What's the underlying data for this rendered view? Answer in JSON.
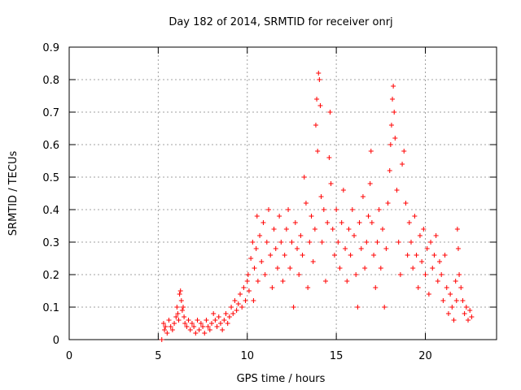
{
  "chart_data": {
    "type": "scatter",
    "title": "Day 182 of 2014, SRMTID for receiver onrj",
    "xlabel": "GPS time / hours",
    "ylabel": "SRMTID / TECUs",
    "xlim": [
      0,
      24
    ],
    "ylim": [
      0,
      0.9
    ],
    "xticks": [
      0,
      5,
      10,
      15,
      20
    ],
    "xtick_labels": [
      "0",
      "5",
      "10",
      "15",
      "20"
    ],
    "yticks": [
      0,
      0.1,
      0.2,
      0.3,
      0.4,
      0.5,
      0.6,
      0.7,
      0.8,
      0.9
    ],
    "ytick_labels": [
      "0",
      "0.1",
      "0.2",
      "0.3",
      "0.4",
      "0.5",
      "0.6",
      "0.7",
      "0.8",
      "0.9"
    ],
    "grid": true,
    "marker": "+",
    "series": [
      {
        "name": "SRMTID",
        "color": "#ff0000",
        "points": [
          [
            5.2,
            0.0
          ],
          [
            5.3,
            0.05
          ],
          [
            5.35,
            0.03
          ],
          [
            5.4,
            0.04
          ],
          [
            5.5,
            0.02
          ],
          [
            5.6,
            0.06
          ],
          [
            5.7,
            0.04
          ],
          [
            5.8,
            0.03
          ],
          [
            5.9,
            0.05
          ],
          [
            6.0,
            0.07
          ],
          [
            6.05,
            0.1
          ],
          [
            6.1,
            0.08
          ],
          [
            6.15,
            0.06
          ],
          [
            6.2,
            0.14
          ],
          [
            6.25,
            0.15
          ],
          [
            6.3,
            0.12
          ],
          [
            6.35,
            0.09
          ],
          [
            6.4,
            0.1
          ],
          [
            6.45,
            0.07
          ],
          [
            6.5,
            0.05
          ],
          [
            6.6,
            0.04
          ],
          [
            6.7,
            0.06
          ],
          [
            6.8,
            0.03
          ],
          [
            6.9,
            0.05
          ],
          [
            7.0,
            0.04
          ],
          [
            7.1,
            0.02
          ],
          [
            7.2,
            0.06
          ],
          [
            7.3,
            0.03
          ],
          [
            7.4,
            0.05
          ],
          [
            7.5,
            0.04
          ],
          [
            7.6,
            0.02
          ],
          [
            7.7,
            0.06
          ],
          [
            7.8,
            0.04
          ],
          [
            7.9,
            0.03
          ],
          [
            8.0,
            0.05
          ],
          [
            8.1,
            0.08
          ],
          [
            8.2,
            0.06
          ],
          [
            8.3,
            0.04
          ],
          [
            8.4,
            0.07
          ],
          [
            8.5,
            0.05
          ],
          [
            8.6,
            0.03
          ],
          [
            8.7,
            0.06
          ],
          [
            8.8,
            0.08
          ],
          [
            8.9,
            0.05
          ],
          [
            9.0,
            0.07
          ],
          [
            9.1,
            0.1
          ],
          [
            9.2,
            0.08
          ],
          [
            9.3,
            0.12
          ],
          [
            9.4,
            0.09
          ],
          [
            9.5,
            0.11
          ],
          [
            9.6,
            0.14
          ],
          [
            9.7,
            0.1
          ],
          [
            9.8,
            0.16
          ],
          [
            9.9,
            0.12
          ],
          [
            10.0,
            0.18
          ],
          [
            10.05,
            0.2
          ],
          [
            10.1,
            0.15
          ],
          [
            10.2,
            0.25
          ],
          [
            10.3,
            0.3
          ],
          [
            10.35,
            0.12
          ],
          [
            10.4,
            0.22
          ],
          [
            10.5,
            0.28
          ],
          [
            10.55,
            0.38
          ],
          [
            10.6,
            0.18
          ],
          [
            10.7,
            0.32
          ],
          [
            10.8,
            0.24
          ],
          [
            10.9,
            0.36
          ],
          [
            11.0,
            0.2
          ],
          [
            11.1,
            0.3
          ],
          [
            11.2,
            0.4
          ],
          [
            11.3,
            0.26
          ],
          [
            11.4,
            0.16
          ],
          [
            11.5,
            0.34
          ],
          [
            11.6,
            0.28
          ],
          [
            11.7,
            0.22
          ],
          [
            11.8,
            0.38
          ],
          [
            11.9,
            0.3
          ],
          [
            12.0,
            0.18
          ],
          [
            12.1,
            0.26
          ],
          [
            12.2,
            0.34
          ],
          [
            12.3,
            0.4
          ],
          [
            12.4,
            0.22
          ],
          [
            12.5,
            0.3
          ],
          [
            12.6,
            0.1
          ],
          [
            12.7,
            0.36
          ],
          [
            12.8,
            0.28
          ],
          [
            12.9,
            0.2
          ],
          [
            13.0,
            0.32
          ],
          [
            13.1,
            0.26
          ],
          [
            13.2,
            0.5
          ],
          [
            13.3,
            0.42
          ],
          [
            13.4,
            0.16
          ],
          [
            13.5,
            0.3
          ],
          [
            13.6,
            0.38
          ],
          [
            13.7,
            0.24
          ],
          [
            13.8,
            0.34
          ],
          [
            13.85,
            0.66
          ],
          [
            13.9,
            0.74
          ],
          [
            13.95,
            0.58
          ],
          [
            14.0,
            0.82
          ],
          [
            14.05,
            0.8
          ],
          [
            14.1,
            0.72
          ],
          [
            14.15,
            0.44
          ],
          [
            14.2,
            0.3
          ],
          [
            14.3,
            0.4
          ],
          [
            14.4,
            0.18
          ],
          [
            14.5,
            0.36
          ],
          [
            14.6,
            0.56
          ],
          [
            14.65,
            0.7
          ],
          [
            14.7,
            0.48
          ],
          [
            14.8,
            0.34
          ],
          [
            14.9,
            0.26
          ],
          [
            15.0,
            0.4
          ],
          [
            15.1,
            0.3
          ],
          [
            15.2,
            0.22
          ],
          [
            15.3,
            0.36
          ],
          [
            15.4,
            0.46
          ],
          [
            15.5,
            0.28
          ],
          [
            15.6,
            0.18
          ],
          [
            15.7,
            0.34
          ],
          [
            15.8,
            0.26
          ],
          [
            15.9,
            0.4
          ],
          [
            16.0,
            0.32
          ],
          [
            16.1,
            0.2
          ],
          [
            16.2,
            0.1
          ],
          [
            16.3,
            0.36
          ],
          [
            16.4,
            0.28
          ],
          [
            16.5,
            0.44
          ],
          [
            16.6,
            0.22
          ],
          [
            16.7,
            0.3
          ],
          [
            16.8,
            0.38
          ],
          [
            16.9,
            0.48
          ],
          [
            16.95,
            0.58
          ],
          [
            17.0,
            0.36
          ],
          [
            17.1,
            0.26
          ],
          [
            17.2,
            0.16
          ],
          [
            17.3,
            0.3
          ],
          [
            17.4,
            0.4
          ],
          [
            17.5,
            0.22
          ],
          [
            17.6,
            0.34
          ],
          [
            17.7,
            0.1
          ],
          [
            17.8,
            0.28
          ],
          [
            17.9,
            0.42
          ],
          [
            18.0,
            0.52
          ],
          [
            18.05,
            0.6
          ],
          [
            18.1,
            0.66
          ],
          [
            18.15,
            0.74
          ],
          [
            18.2,
            0.78
          ],
          [
            18.25,
            0.7
          ],
          [
            18.3,
            0.62
          ],
          [
            18.4,
            0.46
          ],
          [
            18.5,
            0.3
          ],
          [
            18.6,
            0.2
          ],
          [
            18.7,
            0.54
          ],
          [
            18.8,
            0.58
          ],
          [
            18.9,
            0.42
          ],
          [
            19.0,
            0.26
          ],
          [
            19.1,
            0.36
          ],
          [
            19.2,
            0.3
          ],
          [
            19.3,
            0.22
          ],
          [
            19.4,
            0.38
          ],
          [
            19.5,
            0.26
          ],
          [
            19.6,
            0.16
          ],
          [
            19.7,
            0.32
          ],
          [
            19.8,
            0.24
          ],
          [
            19.9,
            0.34
          ],
          [
            20.0,
            0.2
          ],
          [
            20.1,
            0.28
          ],
          [
            20.2,
            0.14
          ],
          [
            20.3,
            0.3
          ],
          [
            20.4,
            0.22
          ],
          [
            20.5,
            0.26
          ],
          [
            20.6,
            0.32
          ],
          [
            20.7,
            0.18
          ],
          [
            20.8,
            0.24
          ],
          [
            20.9,
            0.2
          ],
          [
            21.0,
            0.12
          ],
          [
            21.1,
            0.26
          ],
          [
            21.2,
            0.16
          ],
          [
            21.3,
            0.08
          ],
          [
            21.4,
            0.14
          ],
          [
            21.5,
            0.1
          ],
          [
            21.6,
            0.06
          ],
          [
            21.7,
            0.18
          ],
          [
            21.75,
            0.12
          ],
          [
            21.8,
            0.34
          ],
          [
            21.85,
            0.28
          ],
          [
            21.9,
            0.2
          ],
          [
            22.0,
            0.16
          ],
          [
            22.1,
            0.12
          ],
          [
            22.2,
            0.08
          ],
          [
            22.3,
            0.1
          ],
          [
            22.4,
            0.06
          ],
          [
            22.5,
            0.09
          ],
          [
            22.6,
            0.07
          ]
        ]
      }
    ]
  }
}
